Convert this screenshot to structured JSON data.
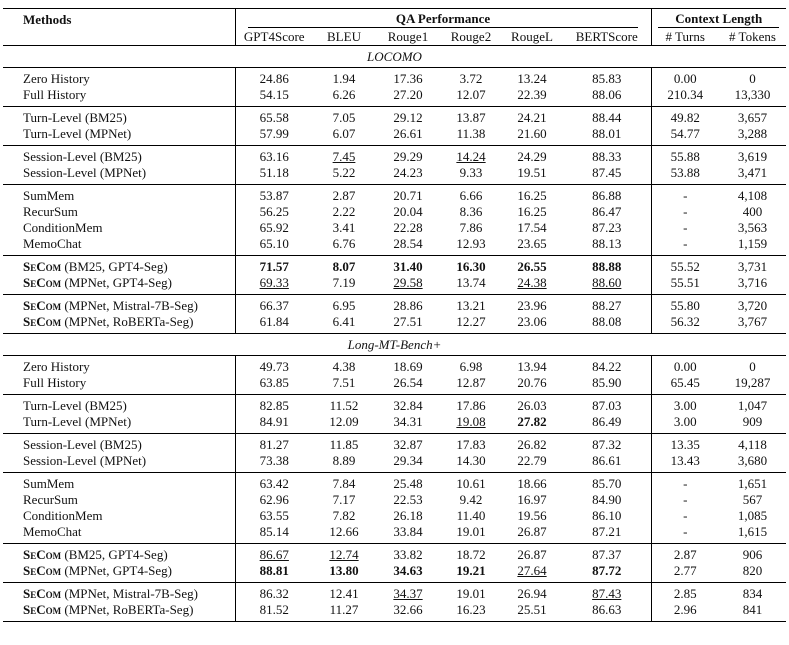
{
  "header": {
    "methods": "Methods",
    "groups": [
      {
        "label": "QA Performance",
        "columns": [
          "GPT4Score",
          "BLEU",
          "Rouge1",
          "Rouge2",
          "RougeL",
          "BERTScore"
        ]
      },
      {
        "label": "Context Length",
        "columns": [
          "# Turns",
          "# Tokens"
        ]
      }
    ]
  },
  "sections": [
    {
      "title": "LOCOMO",
      "groups": [
        [
          {
            "method": "Zero History",
            "cells": [
              "24.86",
              "1.94",
              "17.36",
              "3.72",
              "13.24",
              "85.83",
              "0.00",
              "0"
            ]
          },
          {
            "method": "Full History",
            "cells": [
              "54.15",
              "6.26",
              "27.20",
              "12.07",
              "22.39",
              "88.06",
              "210.34",
              "13,330"
            ]
          }
        ],
        [
          {
            "method": "Turn-Level (BM25)",
            "cells": [
              "65.58",
              "7.05",
              "29.12",
              "13.87",
              "24.21",
              "88.44",
              "49.82",
              "3,657"
            ]
          },
          {
            "method": "Turn-Level (MPNet)",
            "cells": [
              "57.99",
              "6.07",
              "26.61",
              "11.38",
              "21.60",
              "88.01",
              "54.77",
              "3,288"
            ]
          }
        ],
        [
          {
            "method": "Session-Level (BM25)",
            "cells": [
              "63.16",
              "7.45",
              "29.29",
              "14.24",
              "24.29",
              "88.33",
              "55.88",
              "3,619"
            ],
            "underline": [
              1,
              3
            ]
          },
          {
            "method": "Session-Level (MPNet)",
            "cells": [
              "51.18",
              "5.22",
              "24.23",
              "9.33",
              "19.51",
              "87.45",
              "53.88",
              "3,471"
            ]
          }
        ],
        [
          {
            "method": "SumMem",
            "cells": [
              "53.87",
              "2.87",
              "20.71",
              "6.66",
              "16.25",
              "86.88",
              "-",
              "4,108"
            ]
          },
          {
            "method": "RecurSum",
            "cells": [
              "56.25",
              "2.22",
              "20.04",
              "8.36",
              "16.25",
              "86.47",
              "-",
              "400"
            ]
          },
          {
            "method": "ConditionMem",
            "cells": [
              "65.92",
              "3.41",
              "22.28",
              "7.86",
              "17.54",
              "87.23",
              "-",
              "3,563"
            ]
          },
          {
            "method": "MemoChat",
            "cells": [
              "65.10",
              "6.76",
              "28.54",
              "12.93",
              "23.65",
              "88.13",
              "-",
              "1,159"
            ]
          }
        ],
        [
          {
            "method": "SeCom",
            "config": "(BM25, GPT4-Seg)",
            "cells": [
              "71.57",
              "8.07",
              "31.40",
              "16.30",
              "26.55",
              "88.88",
              "55.52",
              "3,731"
            ],
            "bold": [
              0,
              1,
              2,
              3,
              4,
              5
            ]
          },
          {
            "method": "SeCom",
            "config": "(MPNet, GPT4-Seg)",
            "cells": [
              "69.33",
              "7.19",
              "29.58",
              "13.74",
              "24.38",
              "88.60",
              "55.51",
              "3,716"
            ],
            "underline": [
              0,
              2,
              4,
              5
            ]
          }
        ],
        [
          {
            "method": "SeCom",
            "config": "(MPNet, Mistral-7B-Seg)",
            "cells": [
              "66.37",
              "6.95",
              "28.86",
              "13.21",
              "23.96",
              "88.27",
              "55.80",
              "3,720"
            ]
          },
          {
            "method": "SeCom",
            "config": "(MPNet, RoBERTa-Seg)",
            "cells": [
              "61.84",
              "6.41",
              "27.51",
              "12.27",
              "23.06",
              "88.08",
              "56.32",
              "3,767"
            ]
          }
        ]
      ]
    },
    {
      "title": "Long-MT-Bench+",
      "groups": [
        [
          {
            "method": "Zero History",
            "cells": [
              "49.73",
              "4.38",
              "18.69",
              "6.98",
              "13.94",
              "84.22",
              "0.00",
              "0"
            ]
          },
          {
            "method": "Full History",
            "cells": [
              "63.85",
              "7.51",
              "26.54",
              "12.87",
              "20.76",
              "85.90",
              "65.45",
              "19,287"
            ]
          }
        ],
        [
          {
            "method": "Turn-Level (BM25)",
            "cells": [
              "82.85",
              "11.52",
              "32.84",
              "17.86",
              "26.03",
              "87.03",
              "3.00",
              "1,047"
            ]
          },
          {
            "method": "Turn-Level (MPNet)",
            "cells": [
              "84.91",
              "12.09",
              "34.31",
              "19.08",
              "27.82",
              "86.49",
              "3.00",
              "909"
            ],
            "underline": [
              3
            ],
            "bold": [
              4
            ]
          }
        ],
        [
          {
            "method": "Session-Level (BM25)",
            "cells": [
              "81.27",
              "11.85",
              "32.87",
              "17.83",
              "26.82",
              "87.32",
              "13.35",
              "4,118"
            ]
          },
          {
            "method": "Session-Level (MPNet)",
            "cells": [
              "73.38",
              "8.89",
              "29.34",
              "14.30",
              "22.79",
              "86.61",
              "13.43",
              "3,680"
            ]
          }
        ],
        [
          {
            "method": "SumMem",
            "cells": [
              "63.42",
              "7.84",
              "25.48",
              "10.61",
              "18.66",
              "85.70",
              "-",
              "1,651"
            ]
          },
          {
            "method": "RecurSum",
            "cells": [
              "62.96",
              "7.17",
              "22.53",
              "9.42",
              "16.97",
              "84.90",
              "-",
              "567"
            ]
          },
          {
            "method": "ConditionMem",
            "cells": [
              "63.55",
              "7.82",
              "26.18",
              "11.40",
              "19.56",
              "86.10",
              "-",
              "1,085"
            ]
          },
          {
            "method": "MemoChat",
            "cells": [
              "85.14",
              "12.66",
              "33.84",
              "19.01",
              "26.87",
              "87.21",
              "-",
              "1,615"
            ]
          }
        ],
        [
          {
            "method": "SeCom",
            "config": "(BM25, GPT4-Seg)",
            "cells": [
              "86.67",
              "12.74",
              "33.82",
              "18.72",
              "26.87",
              "87.37",
              "2.87",
              "906"
            ],
            "underline": [
              0,
              1
            ]
          },
          {
            "method": "SeCom",
            "config": "(MPNet, GPT4-Seg)",
            "cells": [
              "88.81",
              "13.80",
              "34.63",
              "19.21",
              "27.64",
              "87.72",
              "2.77",
              "820"
            ],
            "bold": [
              0,
              1,
              2,
              3,
              5
            ],
            "underline": [
              4
            ]
          }
        ],
        [
          {
            "method": "SeCom",
            "config": "(MPNet, Mistral-7B-Seg)",
            "cells": [
              "86.32",
              "12.41",
              "34.37",
              "19.01",
              "26.94",
              "87.43",
              "2.85",
              "834"
            ],
            "underline": [
              2,
              5
            ]
          },
          {
            "method": "SeCom",
            "config": "(MPNet, RoBERTa-Seg)",
            "cells": [
              "81.52",
              "11.27",
              "32.66",
              "16.23",
              "25.51",
              "86.63",
              "2.96",
              "841"
            ]
          }
        ]
      ]
    }
  ]
}
